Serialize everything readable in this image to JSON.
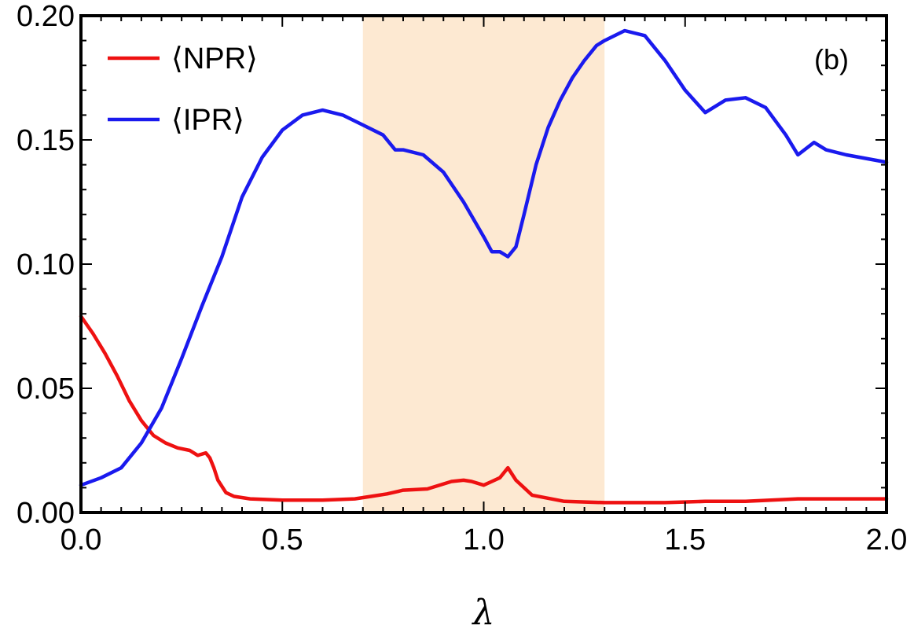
{
  "chart_data": {
    "type": "line",
    "xlabel": "λ",
    "ylabel": "",
    "xlim": [
      0.0,
      2.0
    ],
    "ylim": [
      0.0,
      0.2
    ],
    "x_ticks": [
      "0.0",
      "0.5",
      "1.0",
      "1.5",
      "2.0"
    ],
    "y_ticks": [
      "0.00",
      "0.05",
      "0.10",
      "0.15",
      "0.20"
    ],
    "panel_label": "(b)",
    "legend_position": "top-left",
    "shaded_region": {
      "x_range": [
        0.7,
        1.3
      ],
      "color": "#fde9d2"
    },
    "series": [
      {
        "name": "⟨NPR⟩",
        "color": "#ee1111",
        "x": [
          0.0,
          0.03,
          0.06,
          0.09,
          0.12,
          0.15,
          0.18,
          0.21,
          0.24,
          0.27,
          0.29,
          0.31,
          0.32,
          0.33,
          0.34,
          0.36,
          0.38,
          0.42,
          0.5,
          0.6,
          0.68,
          0.72,
          0.76,
          0.8,
          0.86,
          0.92,
          0.95,
          0.97,
          1.0,
          1.02,
          1.04,
          1.06,
          1.08,
          1.12,
          1.2,
          1.3,
          1.45,
          1.55,
          1.65,
          1.78,
          1.85,
          2.0
        ],
        "values": [
          0.079,
          0.072,
          0.064,
          0.055,
          0.045,
          0.037,
          0.031,
          0.028,
          0.026,
          0.025,
          0.023,
          0.024,
          0.022,
          0.018,
          0.013,
          0.008,
          0.0065,
          0.0055,
          0.005,
          0.005,
          0.0055,
          0.0065,
          0.0075,
          0.009,
          0.0095,
          0.0125,
          0.013,
          0.0125,
          0.011,
          0.0125,
          0.014,
          0.018,
          0.013,
          0.007,
          0.0045,
          0.004,
          0.004,
          0.0045,
          0.0045,
          0.0055,
          0.0055,
          0.0055
        ]
      },
      {
        "name": "⟨IPR⟩",
        "color": "#1a1aee",
        "x": [
          0.0,
          0.05,
          0.1,
          0.15,
          0.2,
          0.25,
          0.3,
          0.35,
          0.4,
          0.45,
          0.5,
          0.55,
          0.6,
          0.65,
          0.7,
          0.75,
          0.78,
          0.8,
          0.85,
          0.9,
          0.95,
          1.0,
          1.02,
          1.04,
          1.06,
          1.08,
          1.1,
          1.13,
          1.16,
          1.19,
          1.22,
          1.25,
          1.28,
          1.3,
          1.35,
          1.4,
          1.45,
          1.5,
          1.55,
          1.6,
          1.65,
          1.7,
          1.75,
          1.78,
          1.82,
          1.85,
          1.9,
          2.0
        ],
        "values": [
          0.011,
          0.014,
          0.018,
          0.028,
          0.042,
          0.062,
          0.083,
          0.103,
          0.127,
          0.143,
          0.154,
          0.16,
          0.162,
          0.16,
          0.156,
          0.152,
          0.146,
          0.146,
          0.144,
          0.137,
          0.125,
          0.111,
          0.105,
          0.105,
          0.103,
          0.107,
          0.12,
          0.14,
          0.155,
          0.166,
          0.175,
          0.182,
          0.188,
          0.19,
          0.194,
          0.192,
          0.182,
          0.17,
          0.161,
          0.166,
          0.167,
          0.163,
          0.152,
          0.144,
          0.149,
          0.146,
          0.144,
          0.141
        ]
      }
    ]
  }
}
